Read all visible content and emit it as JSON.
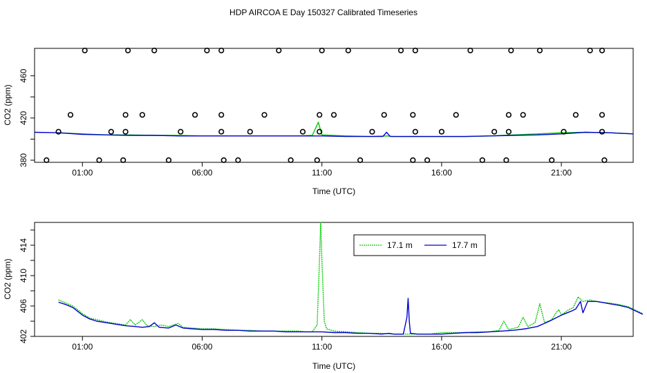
{
  "figure": {
    "title": "HDP AIRCOA E  Day 150327  Calibrated Timeseries"
  },
  "chart_data": [
    {
      "type": "line",
      "xlabel": "Time (UTC)",
      "ylabel": "CO2 (ppm)",
      "x_ticks": [
        "01:00",
        "06:00",
        "11:00",
        "16:00",
        "21:00"
      ],
      "x_tick_hours": [
        1,
        6,
        11,
        16,
        21
      ],
      "y_ticks": [
        380,
        420,
        460
      ],
      "y_minor_ticks": [
        400,
        440
      ],
      "xlim": [
        -1,
        24
      ],
      "ylim": [
        378,
        486
      ],
      "legend": null,
      "series": [
        {
          "color": "#00cc00",
          "points": [
            [
              0,
              406
            ],
            [
              1,
              405
            ],
            [
              2,
              404
            ],
            [
              3,
              404
            ],
            [
              4,
              403.5
            ],
            [
              5,
              403.5
            ],
            [
              6,
              403
            ],
            [
              7,
              403
            ],
            [
              8,
              403
            ],
            [
              9,
              403
            ],
            [
              10,
              403
            ],
            [
              10.6,
              403.5
            ],
            [
              10.85,
              416
            ],
            [
              11,
              404
            ],
            [
              12,
              403
            ],
            [
              13,
              402.5
            ],
            [
              13.7,
              403
            ],
            [
              14,
              402.5
            ],
            [
              15,
              402.5
            ],
            [
              16,
              402.5
            ],
            [
              17,
              402.5
            ],
            [
              18,
              403
            ],
            [
              19,
              404
            ],
            [
              20,
              405
            ],
            [
              21,
              406
            ],
            [
              22,
              406.5
            ],
            [
              23,
              406
            ],
            [
              24,
              405
            ]
          ]
        },
        {
          "color": "#0000cc",
          "points": [
            [
              -1,
              406.5
            ],
            [
              0,
              406
            ],
            [
              1,
              404.5
            ],
            [
              2,
              404
            ],
            [
              3,
              403.5
            ],
            [
              4,
              403.5
            ],
            [
              5,
              403
            ],
            [
              6,
              403
            ],
            [
              7,
              403
            ],
            [
              8,
              403
            ],
            [
              9,
              403
            ],
            [
              10,
              403
            ],
            [
              11,
              403
            ],
            [
              12,
              402.5
            ],
            [
              13,
              402.5
            ],
            [
              13.55,
              402.5
            ],
            [
              13.7,
              406.5
            ],
            [
              13.85,
              402.5
            ],
            [
              14,
              402.5
            ],
            [
              15,
              402.5
            ],
            [
              16,
              402.5
            ],
            [
              17,
              402.5
            ],
            [
              18,
              403
            ],
            [
              19,
              403.5
            ],
            [
              20,
              404
            ],
            [
              21,
              405
            ],
            [
              22,
              406.5
            ],
            [
              23,
              406
            ],
            [
              24,
              405
            ]
          ]
        }
      ],
      "markers": {
        "style": "open-circle",
        "points": [
          [
            -0.5,
            380
          ],
          [
            0,
            407
          ],
          [
            0.5,
            423
          ],
          [
            1.1,
            484
          ],
          [
            1.7,
            380
          ],
          [
            2.2,
            407
          ],
          [
            2.7,
            380
          ],
          [
            2.8,
            407
          ],
          [
            2.8,
            423
          ],
          [
            2.9,
            484
          ],
          [
            3.5,
            423
          ],
          [
            4,
            484
          ],
          [
            4.6,
            380
          ],
          [
            5.1,
            407
          ],
          [
            5.7,
            423
          ],
          [
            6.2,
            484
          ],
          [
            6.8,
            407
          ],
          [
            6.8,
            423
          ],
          [
            6.8,
            484
          ],
          [
            6.9,
            380
          ],
          [
            7.5,
            380
          ],
          [
            8,
            407
          ],
          [
            8.6,
            423
          ],
          [
            9.2,
            484
          ],
          [
            9.7,
            380
          ],
          [
            10.2,
            407
          ],
          [
            10.8,
            380
          ],
          [
            10.9,
            407
          ],
          [
            10.9,
            423
          ],
          [
            11,
            484
          ],
          [
            11.5,
            423
          ],
          [
            12.1,
            484
          ],
          [
            12.6,
            380
          ],
          [
            13.1,
            407
          ],
          [
            13.6,
            423
          ],
          [
            14.3,
            484
          ],
          [
            14.8,
            380
          ],
          [
            14.8,
            423
          ],
          [
            14.9,
            407
          ],
          [
            14.9,
            484
          ],
          [
            15.4,
            380
          ],
          [
            16,
            407
          ],
          [
            16.6,
            423
          ],
          [
            17.2,
            484
          ],
          [
            17.7,
            380
          ],
          [
            18.2,
            407
          ],
          [
            18.7,
            380
          ],
          [
            18.8,
            407
          ],
          [
            18.8,
            423
          ],
          [
            18.9,
            484
          ],
          [
            19.4,
            423
          ],
          [
            20.1,
            484
          ],
          [
            20.6,
            380
          ],
          [
            21.1,
            407
          ],
          [
            21.6,
            423
          ],
          [
            22.2,
            484
          ],
          [
            22.7,
            407
          ],
          [
            22.7,
            423
          ],
          [
            22.7,
            484
          ],
          [
            22.8,
            380
          ]
        ]
      }
    },
    {
      "type": "line",
      "xlabel": "Time (UTC)",
      "ylabel": "CO2 (ppm)",
      "x_ticks": [
        "01:00",
        "06:00",
        "11:00",
        "16:00",
        "21:00"
      ],
      "x_tick_hours": [
        1,
        6,
        11,
        16,
        21
      ],
      "y_ticks": [
        402,
        406,
        410,
        414
      ],
      "y_minor_ticks": [
        404,
        408,
        412,
        416
      ],
      "xlim": [
        -1,
        24
      ],
      "ylim": [
        402,
        417
      ],
      "legend": {
        "position": "top-right",
        "entries": [
          "17.1 m",
          "17.7 m"
        ]
      },
      "series": [
        {
          "name": "17.1 m",
          "color": "#00cc00",
          "dash": "2,1",
          "points": [
            [
              0,
              406.8
            ],
            [
              0.3,
              406.4
            ],
            [
              0.6,
              406
            ],
            [
              1,
              405
            ],
            [
              1.3,
              404.4
            ],
            [
              1.6,
              404.2
            ],
            [
              2,
              403.9
            ],
            [
              2.4,
              403.7
            ],
            [
              2.8,
              403.5
            ],
            [
              3,
              404.2
            ],
            [
              3.2,
              403.5
            ],
            [
              3.5,
              404.2
            ],
            [
              3.7,
              403.4
            ],
            [
              4,
              403.3
            ],
            [
              4.3,
              403.5
            ],
            [
              4.6,
              403.3
            ],
            [
              5,
              403.7
            ],
            [
              5.2,
              403.2
            ],
            [
              5.6,
              403.1
            ],
            [
              6,
              403
            ],
            [
              6.5,
              403
            ],
            [
              7,
              402.9
            ],
            [
              7.5,
              402.8
            ],
            [
              8,
              402.8
            ],
            [
              8.5,
              402.7
            ],
            [
              9,
              402.7
            ],
            [
              9.5,
              402.7
            ],
            [
              10,
              402.7
            ],
            [
              10.3,
              402.6
            ],
            [
              10.6,
              402.6
            ],
            [
              10.8,
              403.5
            ],
            [
              10.9,
              412
            ],
            [
              10.95,
              417
            ],
            [
              11.0,
              412
            ],
            [
              11.1,
              404
            ],
            [
              11.2,
              403
            ],
            [
              11.5,
              402.7
            ],
            [
              12,
              402.6
            ],
            [
              12.5,
              402.5
            ],
            [
              13,
              402.4
            ],
            [
              13.5,
              402.4
            ],
            [
              14,
              402.3
            ],
            [
              14.5,
              402.3
            ],
            [
              15,
              402.3
            ],
            [
              15.5,
              402.3
            ],
            [
              16,
              402.5
            ],
            [
              16.5,
              402.5
            ],
            [
              17,
              402.5
            ],
            [
              17.5,
              402.6
            ],
            [
              18,
              402.6
            ],
            [
              18.4,
              402.8
            ],
            [
              18.6,
              404
            ],
            [
              18.8,
              402.9
            ],
            [
              19.2,
              403.2
            ],
            [
              19.4,
              404.5
            ],
            [
              19.6,
              403.3
            ],
            [
              19.9,
              403.8
            ],
            [
              20.1,
              406.3
            ],
            [
              20.3,
              403.8
            ],
            [
              20.6,
              404.2
            ],
            [
              20.8,
              405.2
            ],
            [
              20.9,
              405.5
            ],
            [
              21,
              404.8
            ],
            [
              21.3,
              405.5
            ],
            [
              21.5,
              405.8
            ],
            [
              21.7,
              407.2
            ],
            [
              21.9,
              406.6
            ],
            [
              22.2,
              406.8
            ],
            [
              22.6,
              406.5
            ],
            [
              23,
              406.4
            ],
            [
              23.4,
              406.2
            ],
            [
              23.8,
              405.9
            ],
            [
              24,
              405.6
            ],
            [
              24.2,
              405.3
            ],
            [
              24.4,
              405
            ]
          ]
        },
        {
          "name": "17.7 m",
          "color": "#0000cc",
          "points": [
            [
              0,
              406.5
            ],
            [
              0.3,
              406.2
            ],
            [
              0.6,
              405.8
            ],
            [
              1,
              404.8
            ],
            [
              1.3,
              404.3
            ],
            [
              1.6,
              404
            ],
            [
              2,
              403.8
            ],
            [
              2.4,
              403.6
            ],
            [
              2.8,
              403.4
            ],
            [
              3.2,
              403.3
            ],
            [
              3.5,
              403.2
            ],
            [
              3.8,
              403.3
            ],
            [
              4,
              403.8
            ],
            [
              4.2,
              403.2
            ],
            [
              4.6,
              403.1
            ],
            [
              4.9,
              403.5
            ],
            [
              5.2,
              403.1
            ],
            [
              5.6,
              403
            ],
            [
              6,
              402.9
            ],
            [
              6.5,
              402.9
            ],
            [
              7,
              402.8
            ],
            [
              7.5,
              402.8
            ],
            [
              8,
              402.7
            ],
            [
              8.5,
              402.7
            ],
            [
              9,
              402.7
            ],
            [
              9.5,
              402.6
            ],
            [
              10,
              402.6
            ],
            [
              10.5,
              402.6
            ],
            [
              11,
              402.6
            ],
            [
              11.5,
              402.5
            ],
            [
              12,
              402.5
            ],
            [
              12.5,
              402.4
            ],
            [
              13,
              402.4
            ],
            [
              13.5,
              402.3
            ],
            [
              13.8,
              402.4
            ],
            [
              14,
              402.3
            ],
            [
              14.4,
              402.3
            ],
            [
              14.55,
              404.5
            ],
            [
              14.6,
              407
            ],
            [
              14.65,
              404
            ],
            [
              14.7,
              402.4
            ],
            [
              15,
              402.3
            ],
            [
              15.5,
              402.3
            ],
            [
              16,
              402.3
            ],
            [
              16.5,
              402.4
            ],
            [
              17,
              402.5
            ],
            [
              17.5,
              402.5
            ],
            [
              18,
              402.6
            ],
            [
              18.5,
              402.7
            ],
            [
              19,
              402.8
            ],
            [
              19.5,
              403
            ],
            [
              20,
              403.3
            ],
            [
              20.5,
              404
            ],
            [
              21,
              404.8
            ],
            [
              21.4,
              405.3
            ],
            [
              21.6,
              405.6
            ],
            [
              21.8,
              406.6
            ],
            [
              21.9,
              405.1
            ],
            [
              22.1,
              406.6
            ],
            [
              22.5,
              406.6
            ],
            [
              23,
              406.3
            ],
            [
              23.4,
              406.1
            ],
            [
              23.8,
              405.8
            ],
            [
              24,
              405.5
            ],
            [
              24.2,
              405.2
            ],
            [
              24.4,
              404.9
            ]
          ]
        }
      ]
    }
  ]
}
